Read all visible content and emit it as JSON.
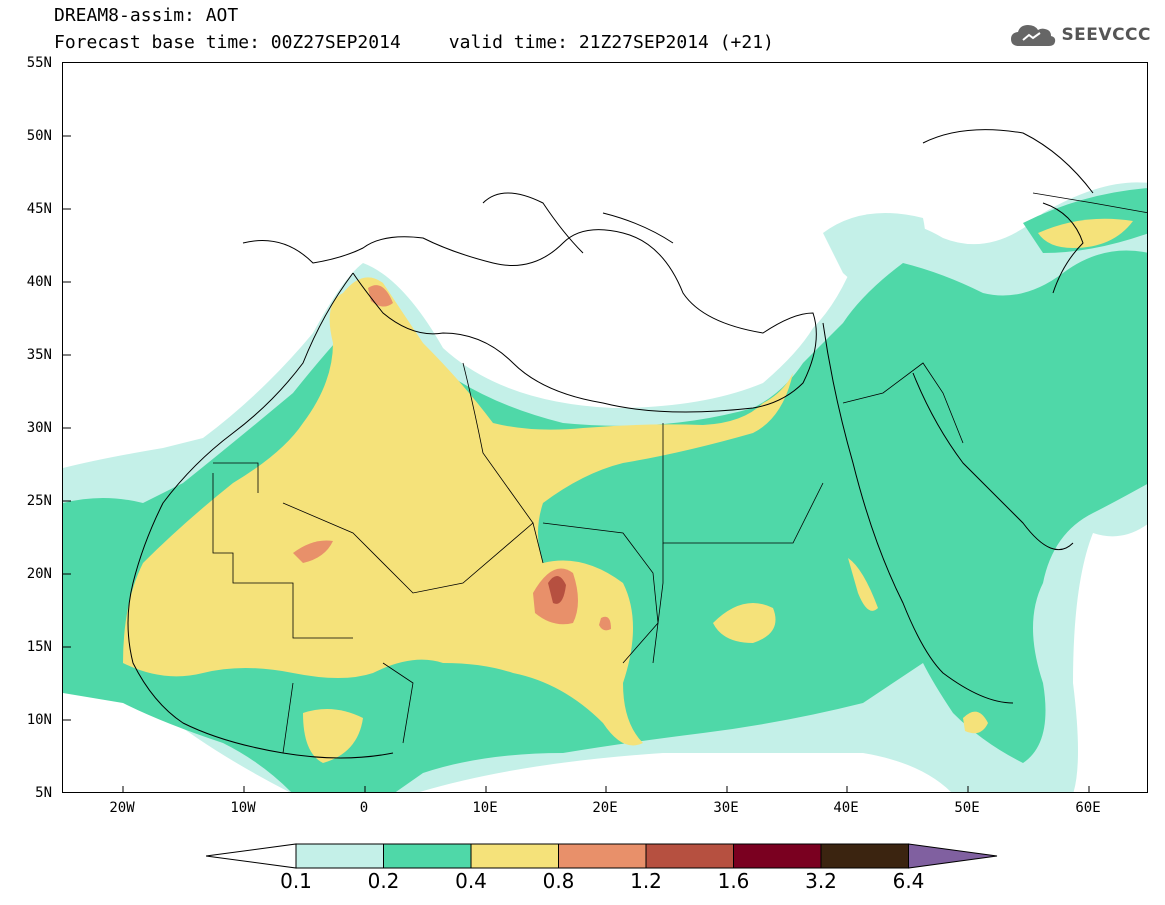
{
  "header": {
    "title_line1": "DREAM8-assim: AOT",
    "base_time": "Forecast base time: 00Z27SEP2014",
    "valid_time": "valid time: 21Z27SEP2014 (+21)",
    "logo_text": "SEEVCCC"
  },
  "map": {
    "lat_labels": [
      "55N",
      "50N",
      "45N",
      "40N",
      "35N",
      "30N",
      "25N",
      "20N",
      "15N",
      "10N",
      "5N"
    ],
    "lon_labels": [
      "20W",
      "10W",
      "0",
      "10E",
      "20E",
      "30E",
      "40E",
      "50E",
      "60E"
    ],
    "extent": {
      "lon_min": -25,
      "lon_max": 65,
      "lat_min": 5,
      "lat_max": 55
    }
  },
  "colorbar": {
    "labels": [
      "0.1",
      "0.2",
      "0.4",
      "0.8",
      "1.2",
      "1.6",
      "3.2",
      "6.4"
    ],
    "colors": [
      "#ffffff",
      "#c4f0e8",
      "#4fd8a8",
      "#f5e27a",
      "#e8906a",
      "#b65040",
      "#7a0020",
      "#3b2410",
      "#8060a0"
    ]
  },
  "colors": {
    "c01": "#c4f0e8",
    "c02": "#4fd8a8",
    "c04": "#f5e27a",
    "c08": "#e8906a",
    "c12": "#b65040"
  }
}
